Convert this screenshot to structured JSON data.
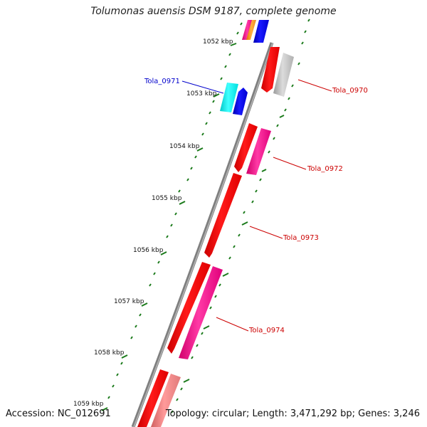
{
  "title": "Tolumonas auensis DSM 9187, complete genome",
  "accession": "Accession: NC_012691",
  "topology": "Topology: circular; Length: 3,471,292 bp; Genes: 3,246",
  "colors": {
    "backbone": "#8a8a8a",
    "tick": "#1a7a1a",
    "label_red": "#cc0000",
    "label_blue": "#0000cc"
  },
  "kbp_labels": [
    "1052 kbp",
    "1053 kbp",
    "1054 kbp",
    "1055 kbp",
    "1056 kbp",
    "1057 kbp",
    "1058 kbp",
    "1059 kbp"
  ],
  "gene_labels": [
    {
      "name": "Tola_0970",
      "color": "#cc0000"
    },
    {
      "name": "Tola_0971",
      "color": "#0000cc"
    },
    {
      "name": "Tola_0972",
      "color": "#cc0000"
    },
    {
      "name": "Tola_0973",
      "color": "#cc0000"
    },
    {
      "name": "Tola_0974",
      "color": "#cc0000"
    }
  ]
}
